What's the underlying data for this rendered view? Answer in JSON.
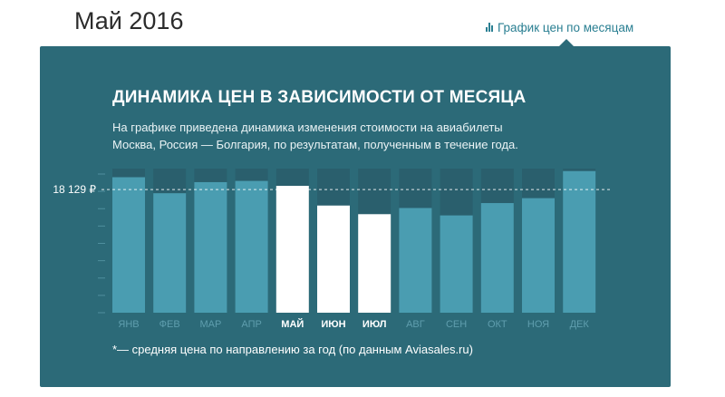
{
  "page": {
    "title": "Май 2016"
  },
  "tab": {
    "label": "График цен по месяцам"
  },
  "panel": {
    "heading": "ДИНАМИКА ЦЕН В ЗАВИСИМОСТИ ОТ МЕСЯЦА",
    "description_line1": "На графике приведена динамика изменения стоимости на авиабилеты",
    "description_line2": "Москва, Россия — Болгария, по результатам, полученным в течение года.",
    "footnote": "*— средняя цена по направлению за год (по данным Aviasales.ru)"
  },
  "colors": {
    "panel_bg": "#2c6a78",
    "bar_inactive": "#4a9db1",
    "bar_track": "#2a5f6d",
    "bar_active": "#ffffff",
    "label_inactive": "#5f9eae",
    "label_active": "#ffffff"
  },
  "chart_data": {
    "type": "bar",
    "title": "ДИНАМИКА ЦЕН В ЗАВИСИМОСТИ ОТ МЕСЯЦА",
    "xlabel": "",
    "ylabel": "",
    "categories": [
      "ЯНВ",
      "ФЕВ",
      "МАР",
      "АПР",
      "МАЙ",
      "ИЮН",
      "ИЮЛ",
      "АВГ",
      "СЕН",
      "ОКТ",
      "НОЯ",
      "ДЕК"
    ],
    "values": [
      1.1,
      0.97,
      1.06,
      1.07,
      1.03,
      0.87,
      0.8,
      0.85,
      0.79,
      0.89,
      0.93,
      1.15
    ],
    "highlighted": [
      "МАЙ",
      "ИЮН",
      "ИЮЛ"
    ],
    "ylim": [
      0,
      1.17
    ],
    "average": {
      "value": 1.0,
      "label": "18 129 ₽"
    },
    "grid": false,
    "legend": "none"
  }
}
